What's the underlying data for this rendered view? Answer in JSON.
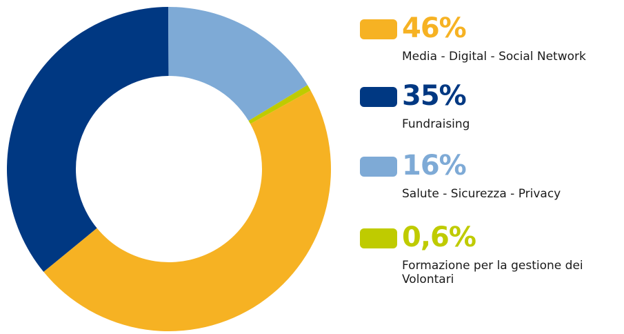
{
  "chart_data": {
    "type": "pie",
    "categories": [
      "Media - Digital - Social Network",
      "Fundraising",
      "Salute - Sicurezza - Privacy",
      "Formazione per la gestione dei Volontari"
    ],
    "values": [
      46,
      35,
      16,
      0.6
    ],
    "value_labels": [
      "46%",
      "35%",
      "16%",
      "0,6%"
    ],
    "colors": [
      "#f6b223",
      "#003882",
      "#7eaad6",
      "#bfcb00"
    ]
  }
}
